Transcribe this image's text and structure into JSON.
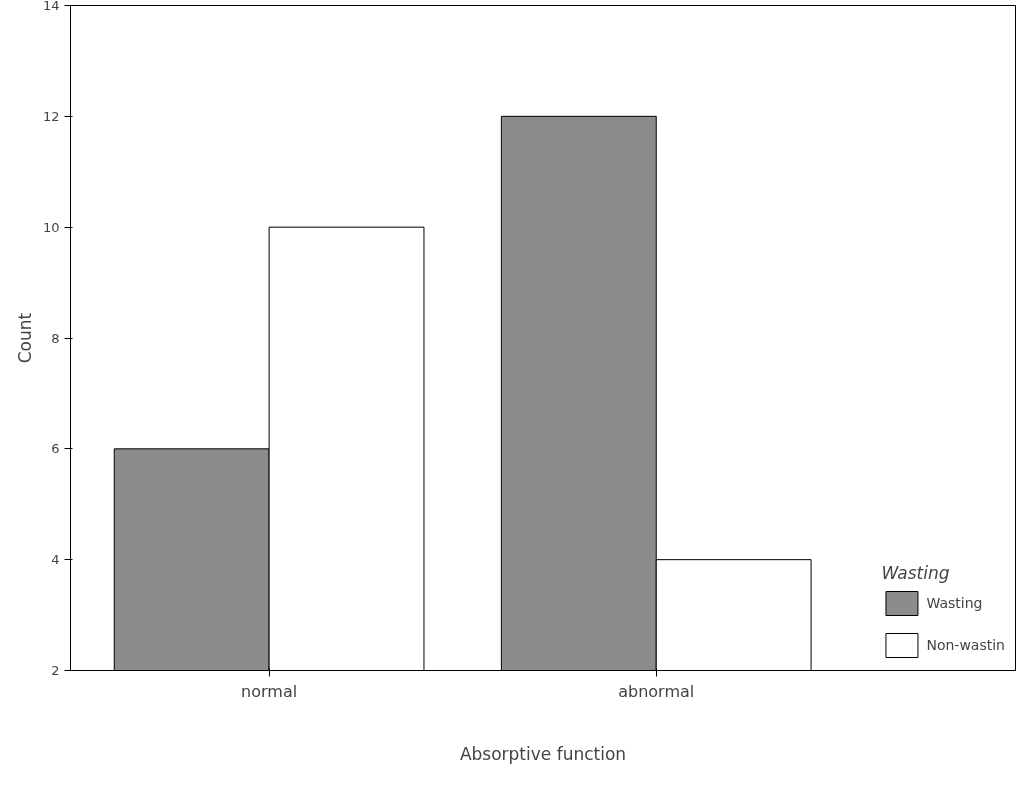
{
  "chart_data": {
    "type": "bar",
    "xlabel": "Absorptive function",
    "ylabel": "Count",
    "legend_title": "Wasting",
    "categories": [
      "normal",
      "abnormal"
    ],
    "series": [
      {
        "name": "Wasting",
        "color": "#8c8c8c",
        "values": [
          6,
          12
        ]
      },
      {
        "name": "Non-wastin",
        "color": "#ffffff",
        "values": [
          10,
          4
        ]
      }
    ],
    "ylim": [
      2,
      14
    ],
    "yticks": [
      2,
      4,
      6,
      8,
      10,
      12,
      14
    ],
    "grid": false,
    "legend": "bottom right"
  }
}
